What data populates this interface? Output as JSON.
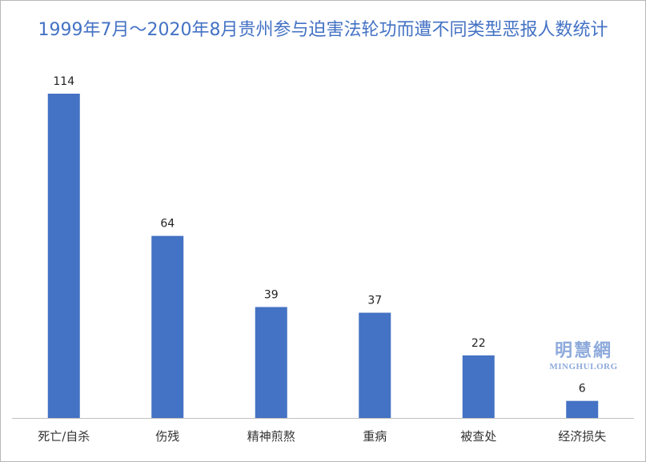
{
  "chart_data": {
    "type": "bar",
    "title": "1999年7月～2020年8月贵州参与迫害法轮功而遭不同类型恶报人数统计",
    "categories": [
      "死亡/自杀",
      "伤残",
      "精神煎熬",
      "重病",
      "被查处",
      "经济损失"
    ],
    "values": [
      114,
      64,
      39,
      37,
      22,
      6
    ],
    "xlabel": "",
    "ylabel": "",
    "ylim": [
      0,
      114
    ],
    "grid": false,
    "legend": "none",
    "data_labels": true,
    "colors": {
      "bar": "#4472c4",
      "title": "#4472c4",
      "axis": "#bfbfbf"
    }
  },
  "watermark": {
    "cn": "明慧網",
    "en": "MINGHUI.ORG"
  }
}
